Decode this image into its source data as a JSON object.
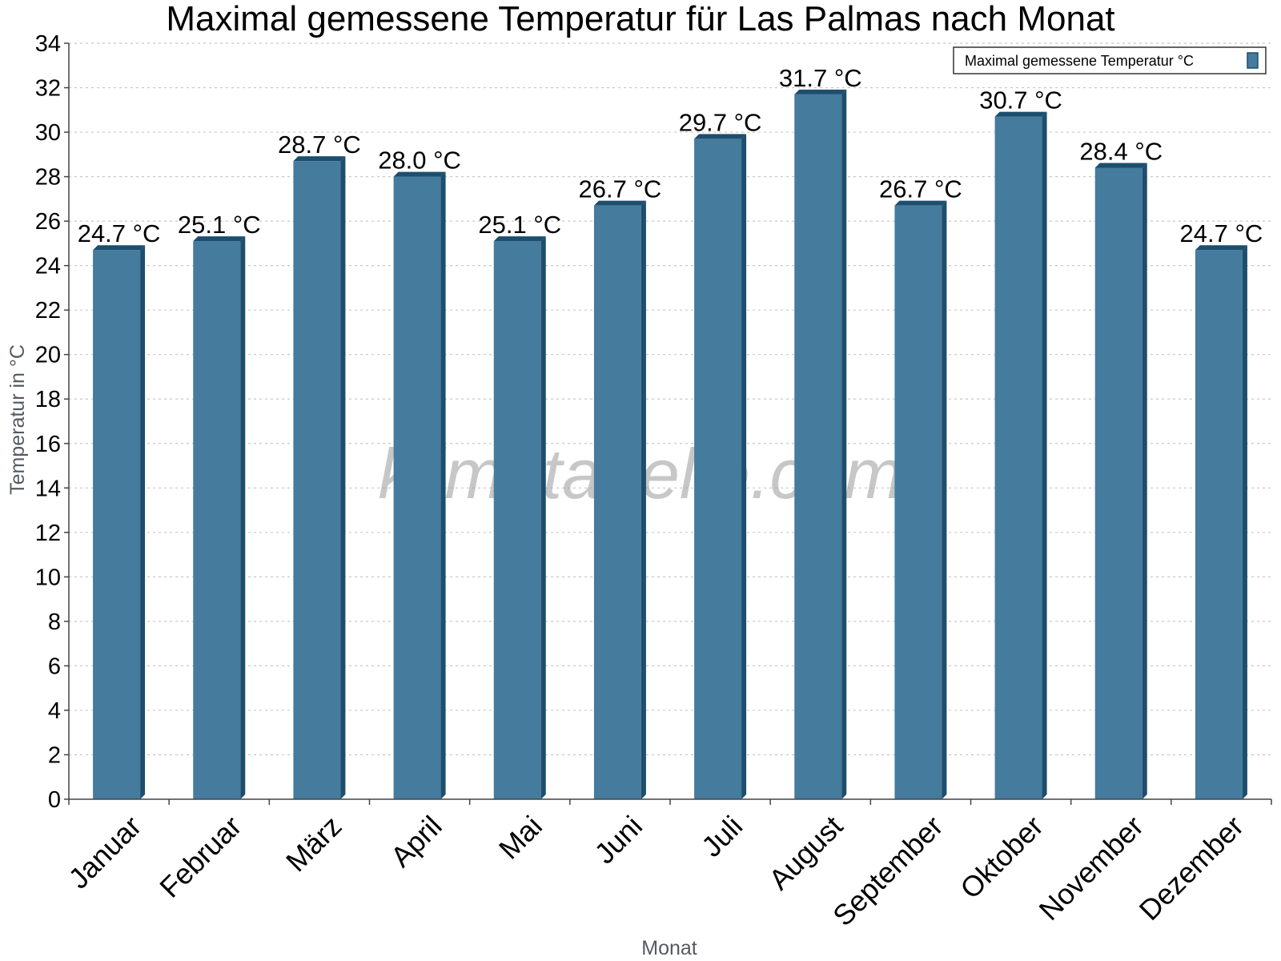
{
  "chart_data": {
    "type": "bar",
    "title": "Maximal gemessene Temperatur für Las Palmas nach Monat",
    "xlabel": "Monat",
    "ylabel": "Temperatur in °C",
    "categories": [
      "Januar",
      "Februar",
      "März",
      "April",
      "Mai",
      "Juni",
      "Juli",
      "August",
      "September",
      "Oktober",
      "November",
      "Dezember"
    ],
    "series": [
      {
        "name": "Maximal gemessene Temperatur °C",
        "values": [
          24.7,
          25.1,
          28.7,
          28.0,
          25.1,
          26.7,
          29.7,
          31.7,
          26.7,
          30.7,
          28.4,
          24.7
        ],
        "value_labels": [
          "24.7 °C",
          "25.1 °C",
          "28.7 °C",
          "28.0 °C",
          "25.1 °C",
          "26.7 °C",
          "29.7 °C",
          "31.7 °C",
          "26.7 °C",
          "30.7 °C",
          "28.4 °C",
          "24.7 °C"
        ]
      }
    ],
    "ylim": [
      0,
      34
    ],
    "yticks": [
      0,
      2,
      4,
      6,
      8,
      10,
      12,
      14,
      16,
      18,
      20,
      22,
      24,
      26,
      28,
      30,
      32,
      34
    ],
    "grid": true,
    "legend_position": "top-right",
    "watermark": "klimatabelle.com",
    "colors": {
      "bar_front": "#457b9d",
      "bar_side": "#1d4e6e",
      "grid": "#c8c8c8",
      "axis": "#444444"
    }
  }
}
